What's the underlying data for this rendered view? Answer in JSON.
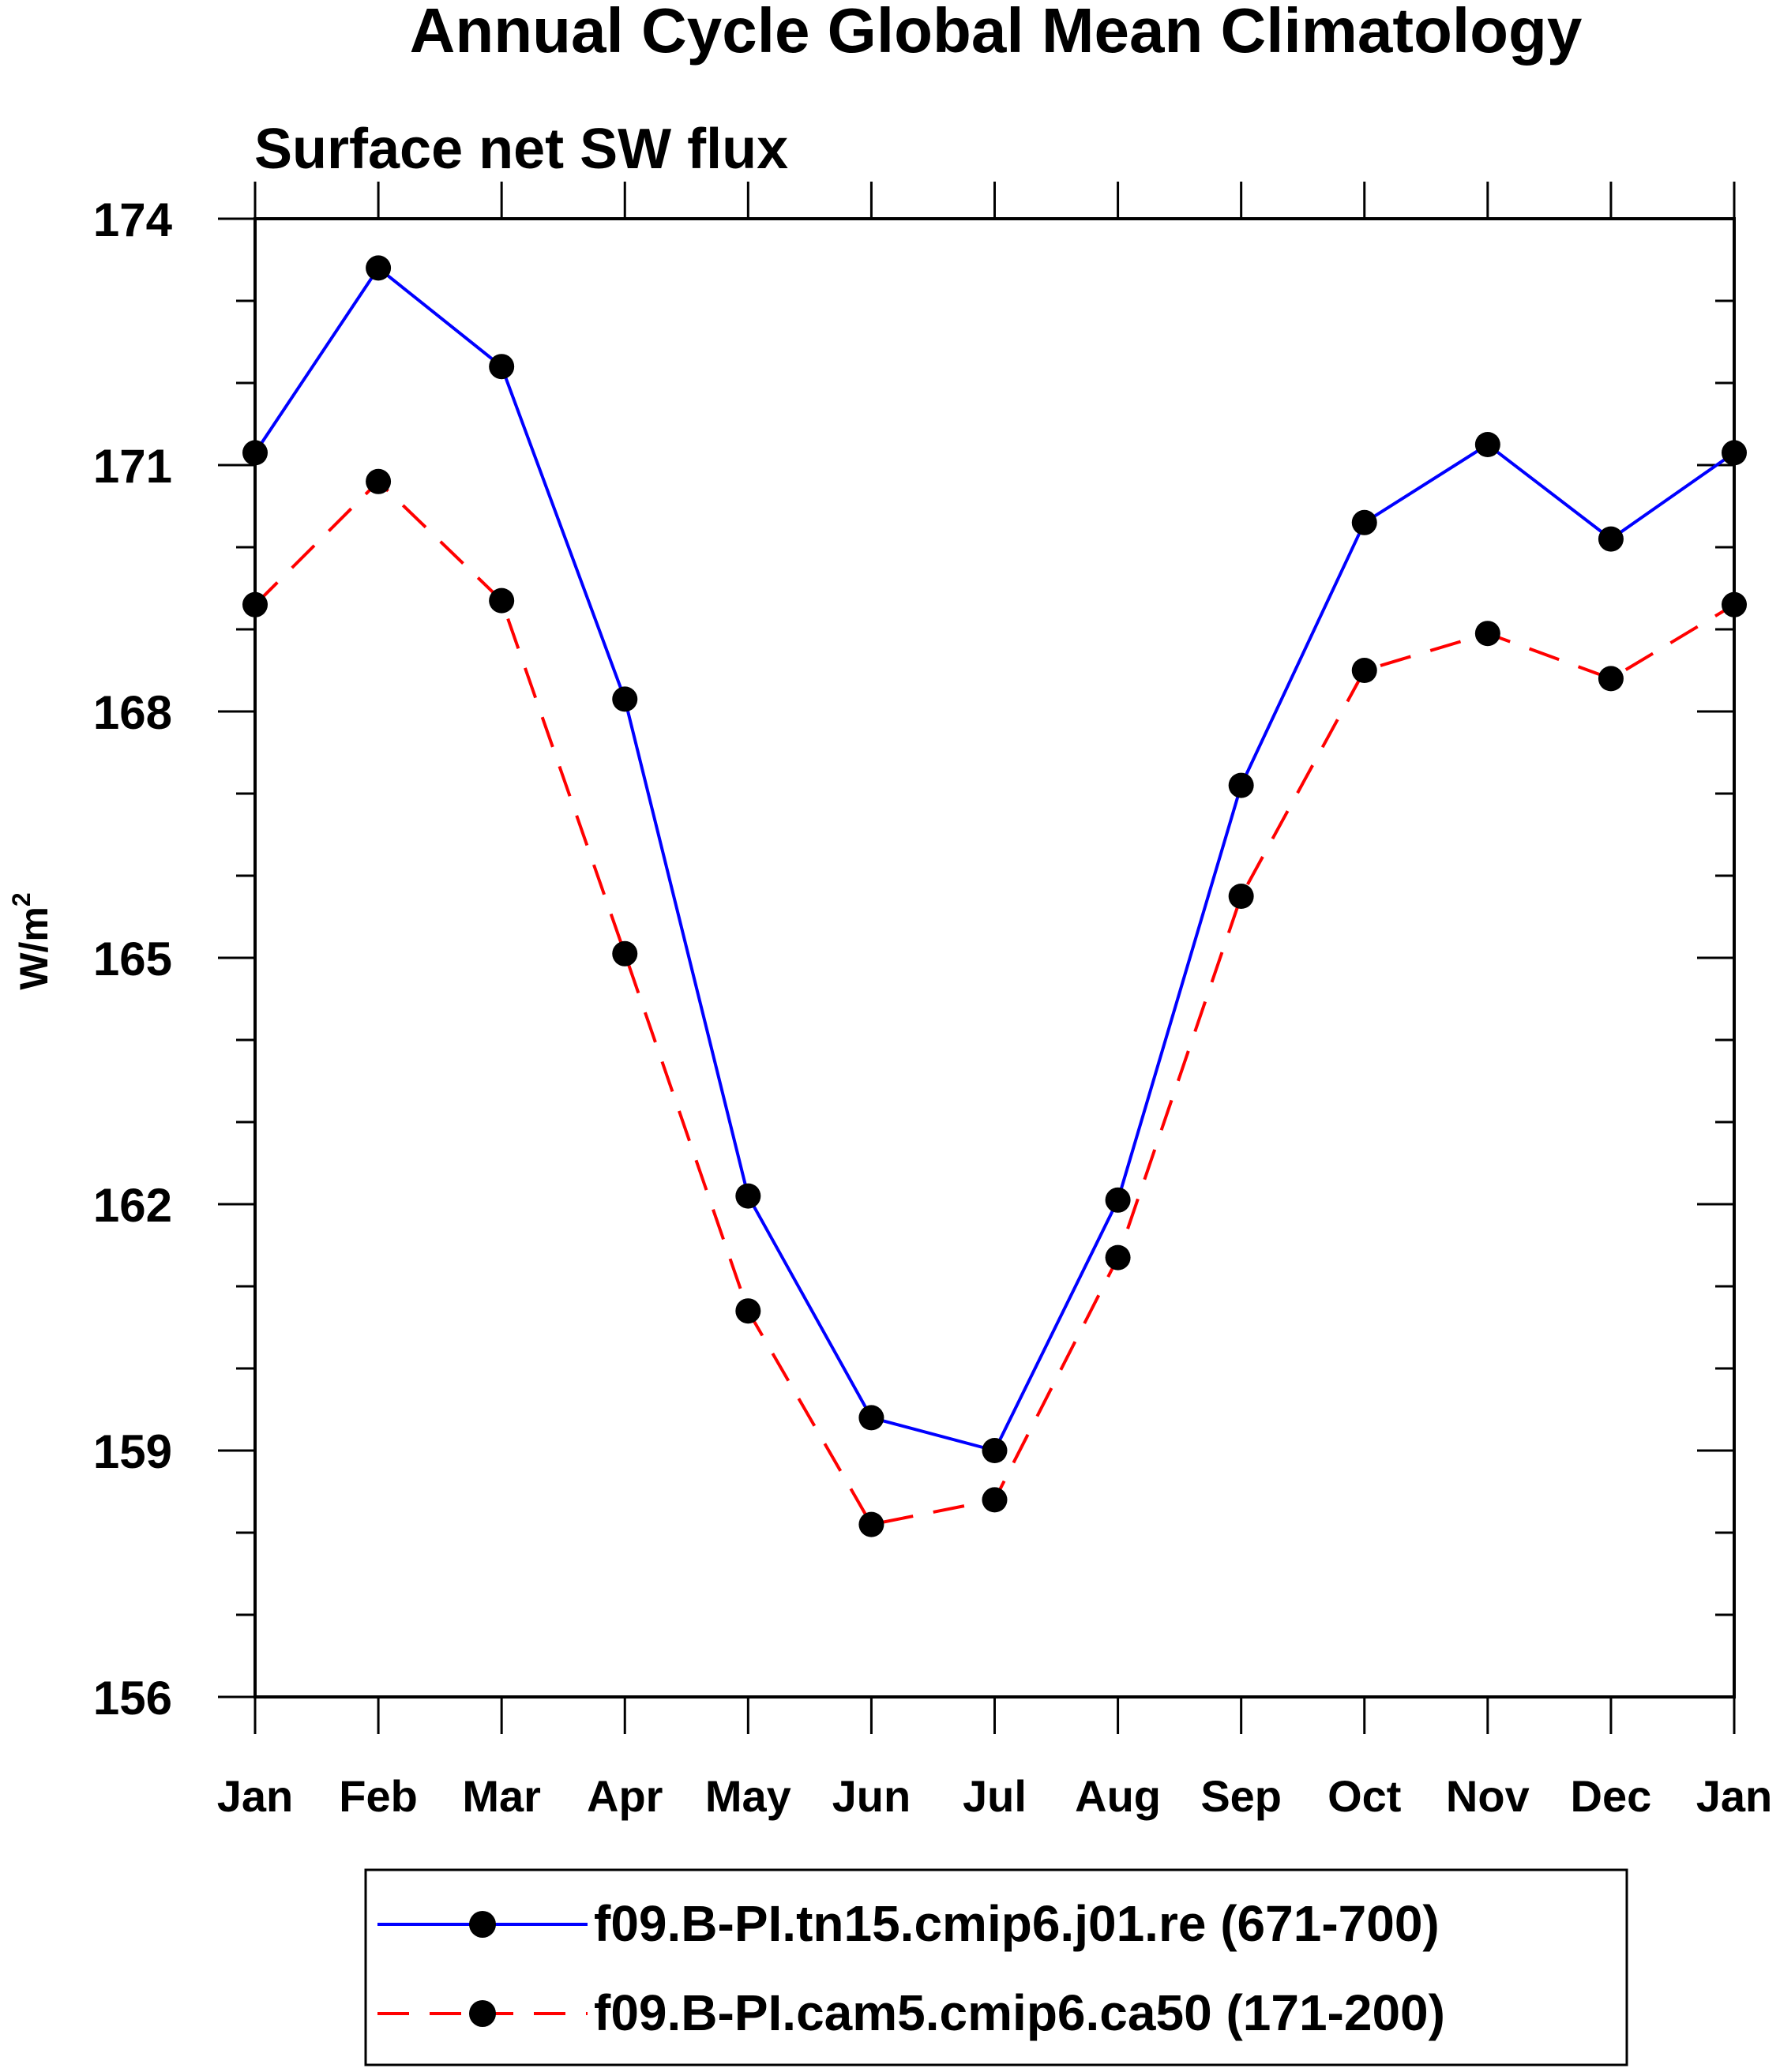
{
  "chart_data": {
    "type": "line",
    "title": "Annual Cycle Global Mean Climatology",
    "subtitle": "Surface net SW flux",
    "xlabel": "",
    "ylabel": "W/m",
    "ylabel_superscript": "2",
    "categories": [
      "Jan",
      "Feb",
      "Mar",
      "Apr",
      "May",
      "Jun",
      "Jul",
      "Aug",
      "Sep",
      "Oct",
      "Nov",
      "Dec",
      "Jan"
    ],
    "ylim": [
      156,
      174
    ],
    "yticks": [
      156,
      159,
      162,
      165,
      168,
      171,
      174
    ],
    "yminor_step": 1,
    "grid": false,
    "legend_position": "bottom",
    "series": [
      {
        "name": "f09.B-PI.tn15.cmip6.j01.re (671-700)",
        "color": "#0000ff",
        "dash": "solid",
        "marker": "filled-circle",
        "values": [
          171.15,
          173.4,
          172.2,
          168.15,
          162.1,
          159.4,
          159.0,
          162.05,
          167.1,
          170.3,
          171.25,
          170.1,
          171.15
        ]
      },
      {
        "name": "f09.B-PI.cam5.cmip6.ca50 (171-200)",
        "color": "#ff0000",
        "dash": "dashed",
        "marker": "filled-circle",
        "values": [
          169.3,
          170.8,
          169.35,
          165.05,
          160.7,
          158.1,
          158.4,
          161.35,
          165.75,
          168.5,
          168.95,
          168.4,
          169.3
        ]
      }
    ]
  }
}
